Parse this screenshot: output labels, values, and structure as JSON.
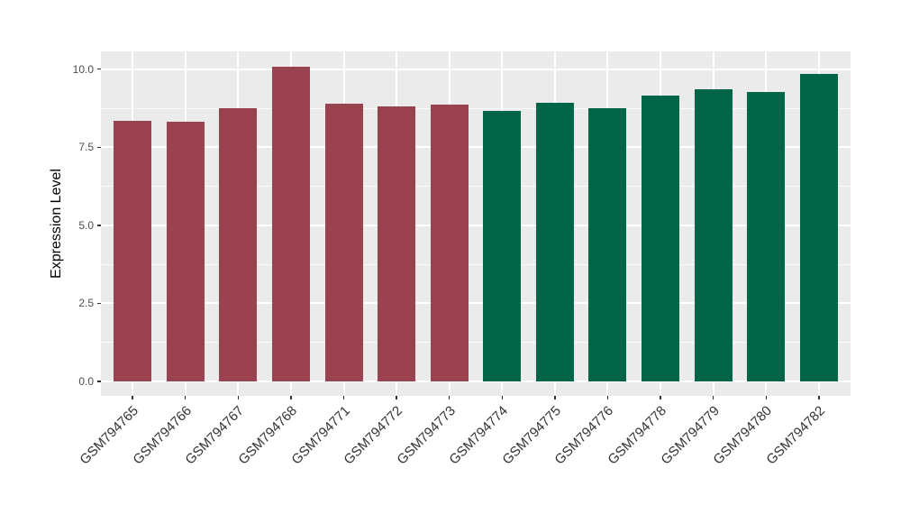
{
  "chart_data": {
    "type": "bar",
    "title": "",
    "xlabel": "",
    "ylabel": "Expression Level",
    "ylim": [
      -0.46,
      10.57
    ],
    "yticks": [
      0,
      2.5,
      5,
      7.5,
      10
    ],
    "ytick_labels": [
      "0.0",
      "2.5",
      "5.0",
      "7.5",
      "10.0"
    ],
    "yticks_minor": [
      1.25,
      3.75,
      6.25,
      8.75
    ],
    "grid": "on",
    "legend": "none",
    "categories": [
      "GSM794765",
      "GSM794766",
      "GSM794767",
      "GSM794768",
      "GSM794771",
      "GSM794772",
      "GSM794773",
      "GSM794774",
      "GSM794775",
      "GSM794776",
      "GSM794778",
      "GSM794779",
      "GSM794780",
      "GSM794782"
    ],
    "values": [
      8.34,
      8.31,
      8.76,
      10.07,
      8.9,
      8.82,
      8.87,
      8.66,
      8.92,
      8.76,
      9.16,
      9.36,
      9.28,
      9.84
    ],
    "bar_colors": [
      "#9B4251",
      "#9B4251",
      "#9B4251",
      "#9B4251",
      "#9B4251",
      "#9B4251",
      "#9B4251",
      "#006647",
      "#006647",
      "#006647",
      "#006647",
      "#006647",
      "#006647",
      "#006647"
    ],
    "group_colors": {
      "left_group": "#9B4251",
      "right_group": "#006647"
    },
    "panel_background": "#EBEBEB",
    "gridline_color": "#FFFFFF"
  }
}
